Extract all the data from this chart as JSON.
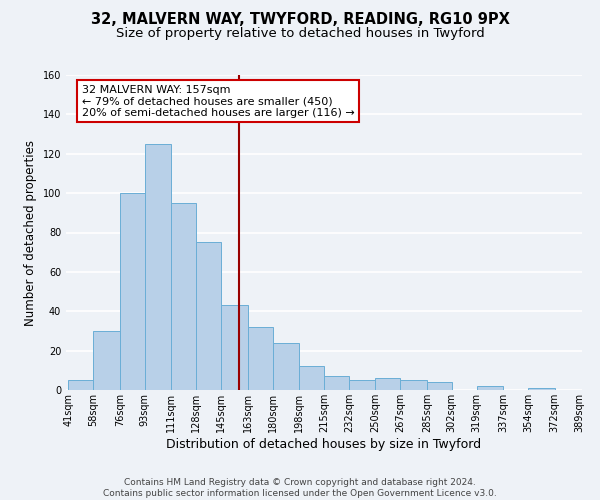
{
  "title": "32, MALVERN WAY, TWYFORD, READING, RG10 9PX",
  "subtitle": "Size of property relative to detached houses in Twyford",
  "xlabel": "Distribution of detached houses by size in Twyford",
  "ylabel": "Number of detached properties",
  "bar_edges": [
    41,
    58,
    76,
    93,
    111,
    128,
    145,
    163,
    180,
    198,
    215,
    232,
    250,
    267,
    285,
    302,
    319,
    337,
    354,
    372,
    389
  ],
  "bar_heights": [
    5,
    30,
    100,
    125,
    95,
    75,
    43,
    32,
    24,
    12,
    7,
    5,
    6,
    5,
    4,
    0,
    2,
    0,
    1,
    0
  ],
  "bar_color": "#b8d0e8",
  "bar_edge_color": "#6aaed6",
  "vline_x": 157,
  "vline_color": "#990000",
  "annotation_line1": "32 MALVERN WAY: 157sqm",
  "annotation_line2": "← 79% of detached houses are smaller (450)",
  "annotation_line3": "20% of semi-detached houses are larger (116) →",
  "annotation_box_color": "#ffffff",
  "annotation_box_edge_color": "#cc0000",
  "ylim": [
    0,
    160
  ],
  "yticks": [
    0,
    20,
    40,
    60,
    80,
    100,
    120,
    140,
    160
  ],
  "tick_labels": [
    "41sqm",
    "58sqm",
    "76sqm",
    "93sqm",
    "111sqm",
    "128sqm",
    "145sqm",
    "163sqm",
    "180sqm",
    "198sqm",
    "215sqm",
    "232sqm",
    "250sqm",
    "267sqm",
    "285sqm",
    "302sqm",
    "319sqm",
    "337sqm",
    "354sqm",
    "372sqm",
    "389sqm"
  ],
  "footer_text": "Contains HM Land Registry data © Crown copyright and database right 2024.\nContains public sector information licensed under the Open Government Licence v3.0.",
  "background_color": "#eef2f7",
  "grid_color": "#ffffff",
  "title_fontsize": 10.5,
  "subtitle_fontsize": 9.5,
  "xlabel_fontsize": 9,
  "ylabel_fontsize": 8.5,
  "tick_fontsize": 7,
  "footer_fontsize": 6.5,
  "annotation_fontsize": 8
}
